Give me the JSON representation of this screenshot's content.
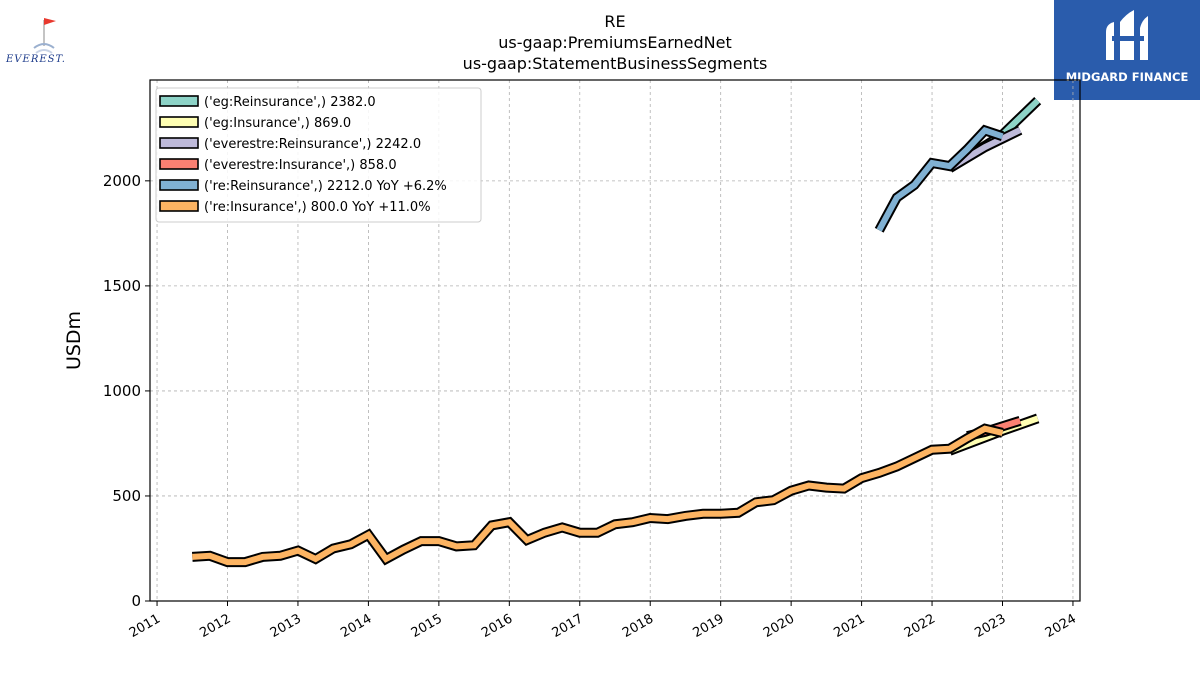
{
  "chart_data": {
    "type": "line",
    "title_lines": [
      "RE",
      "us-gaap:PremiumsEarnedNet",
      "us-gaap:StatementBusinessSegments"
    ],
    "ylabel": "USDm",
    "xlabel": "",
    "ylim": [
      0,
      2480
    ],
    "xlim": [
      2010.9,
      2024.1
    ],
    "yticks": [
      0,
      500,
      1000,
      1500,
      2000
    ],
    "xticks": [
      2011,
      2012,
      2013,
      2014,
      2015,
      2016,
      2017,
      2018,
      2019,
      2020,
      2021,
      2022,
      2023,
      2024
    ],
    "grid": true,
    "legend_position": "top-left",
    "series": [
      {
        "name": "('eg:Reinsurance',) 2382.0",
        "color": "#8dd3c7",
        "points": [
          [
            2022.25,
            2060
          ],
          [
            2023.0,
            2220
          ],
          [
            2023.5,
            2382
          ]
        ]
      },
      {
        "name": "('eg:Insurance',) 869.0",
        "color": "#ffffb3",
        "points": [
          [
            2022.25,
            715
          ],
          [
            2023.0,
            810
          ],
          [
            2023.5,
            869
          ]
        ]
      },
      {
        "name": "('everestre:Reinsurance',) 2242.0",
        "color": "#bebada",
        "points": [
          [
            2022.25,
            2060
          ],
          [
            2022.75,
            2160
          ],
          [
            2023.25,
            2242
          ]
        ]
      },
      {
        "name": "('everestre:Insurance',) 858.0",
        "color": "#fb8072",
        "points": [
          [
            2022.5,
            785
          ],
          [
            2022.75,
            805
          ],
          [
            2023.25,
            858
          ]
        ]
      },
      {
        "name": "('re:Reinsurance',) 2212.0 YoY +6.2%",
        "color": "#80b1d3",
        "points": [
          [
            2021.25,
            1765
          ],
          [
            2021.5,
            1920
          ],
          [
            2021.75,
            1980
          ],
          [
            2022.0,
            2085
          ],
          [
            2022.25,
            2070
          ],
          [
            2022.5,
            2150
          ],
          [
            2022.75,
            2240
          ],
          [
            2023.0,
            2212
          ]
        ]
      },
      {
        "name": "('re:Insurance',) 800.0 YoY +11.0%",
        "color": "#fdb462",
        "points": [
          [
            2011.5,
            210
          ],
          [
            2011.75,
            215
          ],
          [
            2012.0,
            185
          ],
          [
            2012.25,
            185
          ],
          [
            2012.5,
            210
          ],
          [
            2012.75,
            215
          ],
          [
            2013.0,
            240
          ],
          [
            2013.25,
            200
          ],
          [
            2013.5,
            250
          ],
          [
            2013.75,
            270
          ],
          [
            2014.0,
            315
          ],
          [
            2014.25,
            200
          ],
          [
            2014.5,
            245
          ],
          [
            2014.75,
            285
          ],
          [
            2015.0,
            285
          ],
          [
            2015.25,
            260
          ],
          [
            2015.5,
            265
          ],
          [
            2015.75,
            360
          ],
          [
            2016.0,
            375
          ],
          [
            2016.25,
            290
          ],
          [
            2016.5,
            325
          ],
          [
            2016.75,
            350
          ],
          [
            2017.0,
            325
          ],
          [
            2017.25,
            325
          ],
          [
            2017.5,
            365
          ],
          [
            2017.75,
            375
          ],
          [
            2018.0,
            395
          ],
          [
            2018.25,
            390
          ],
          [
            2018.5,
            405
          ],
          [
            2018.75,
            415
          ],
          [
            2019.0,
            415
          ],
          [
            2019.25,
            420
          ],
          [
            2019.5,
            470
          ],
          [
            2019.75,
            480
          ],
          [
            2020.0,
            525
          ],
          [
            2020.25,
            550
          ],
          [
            2020.5,
            540
          ],
          [
            2020.75,
            535
          ],
          [
            2021.0,
            585
          ],
          [
            2021.25,
            610
          ],
          [
            2021.5,
            640
          ],
          [
            2021.75,
            680
          ],
          [
            2022.0,
            720
          ],
          [
            2022.25,
            725
          ],
          [
            2022.5,
            775
          ],
          [
            2022.75,
            820
          ],
          [
            2023.0,
            800
          ]
        ]
      }
    ]
  },
  "logos": {
    "left": {
      "text": "EVEREST.",
      "color": "#1b3a8a",
      "flag_color": "#e8392e"
    },
    "right": {
      "text": "MIDGARD FINANCE",
      "bg": "#2a5cac"
    }
  }
}
